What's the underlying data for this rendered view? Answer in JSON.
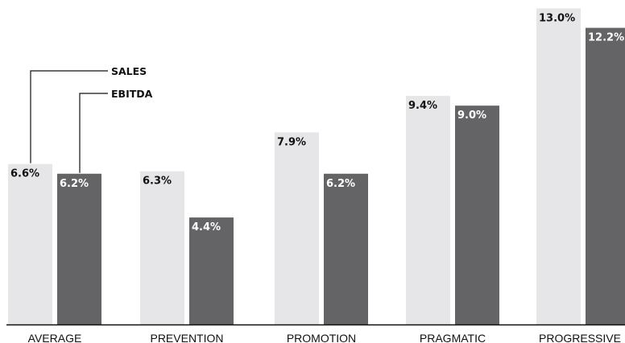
{
  "chart_data": {
    "type": "bar",
    "categories": [
      "AVERAGE",
      "PREVENTION",
      "PROMOTION",
      "PRAGMATIC",
      "PROGRESSIVE"
    ],
    "series": [
      {
        "name": "SALES",
        "values": [
          6.6,
          6.3,
          7.9,
          9.4,
          13.0
        ],
        "labels": [
          "6.6%",
          "6.3%",
          "7.9%",
          "9.4%",
          "13.0%"
        ],
        "color": "#e6e6e8",
        "label_color": "#111111"
      },
      {
        "name": "EBITDA",
        "values": [
          6.2,
          4.4,
          6.2,
          9.0,
          12.2
        ],
        "labels": [
          "6.2%",
          "4.4%",
          "6.2%",
          "9.0%",
          "12.2%"
        ],
        "color": "#646466",
        "label_color": "#ffffff"
      }
    ],
    "title": "",
    "xlabel": "",
    "ylabel": "",
    "ylim": [
      0,
      13
    ],
    "grid": false,
    "legend": "callouts-on-first-group",
    "colors": {
      "baseline": "#111111",
      "leader_line": "#111111"
    }
  }
}
